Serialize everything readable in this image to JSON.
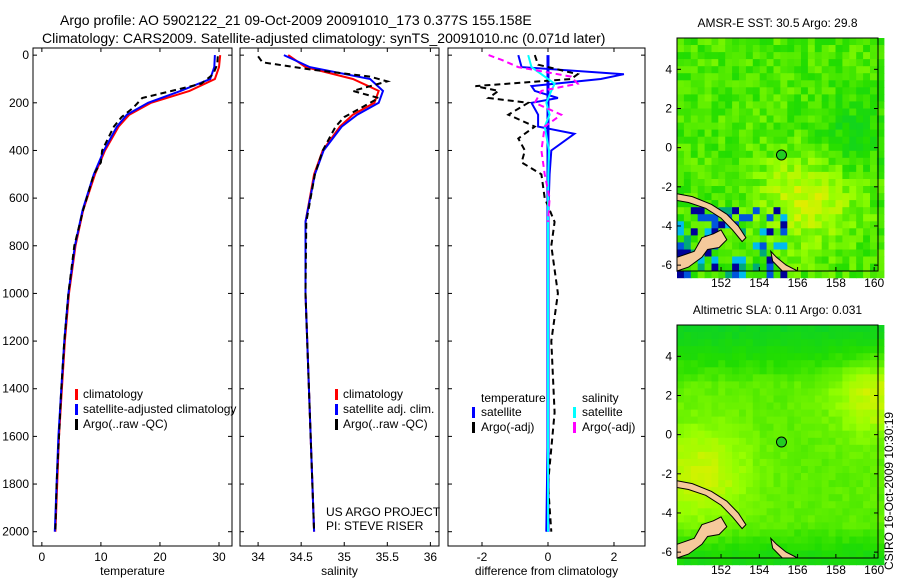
{
  "title_line1": "Argo profile: AO 5902122_21 09-Oct-2009 20091010_173 0.377S 155.158E",
  "title_line2": "Climatology: CARS2009. Satellite-adjusted climatology: synTS_20091010.nc (0.071d later)",
  "side_label": "CSIRO 16-Oct-2009 10:30:19",
  "colors": {
    "climatology": "#ff0000",
    "satellite": "#0000ff",
    "argo": "#000000",
    "sal_satellite": "#00ffff",
    "sal_argo": "#ff00ff",
    "land": "#f5c99b"
  },
  "chart_data": [
    {
      "type": "line",
      "xlabel": "temperature",
      "ylabel": "",
      "xlim": [
        -1.5,
        32.2
      ],
      "ylim": [
        -30,
        2060
      ],
      "yreverse": true,
      "xticks": [
        0,
        10,
        20,
        30
      ],
      "yticks": [
        0,
        200,
        400,
        600,
        800,
        1000,
        1200,
        1400,
        1600,
        1800,
        2000
      ],
      "legend": [
        "climatology",
        "satellite-adjusted climatology",
        "Argo(..raw -QC)"
      ],
      "series": [
        {
          "name": "climatology",
          "color": "#ff0000",
          "dash": "",
          "depth": [
            0,
            50,
            100,
            150,
            200,
            250,
            300,
            400,
            500,
            650,
            800,
            1000,
            1200,
            1400,
            1600,
            1800,
            2000
          ],
          "values": [
            30.2,
            30,
            29.3,
            25,
            18.5,
            14.8,
            13,
            10.7,
            9,
            7,
            5.7,
            4.6,
            3.9,
            3.4,
            2.9,
            2.6,
            2.3
          ]
        },
        {
          "name": "satellite",
          "color": "#0000ff",
          "dash": "",
          "depth": [
            0,
            50,
            100,
            150,
            200,
            250,
            300,
            400,
            500,
            650,
            800,
            1000,
            1200,
            1400,
            1600,
            1800,
            2000
          ],
          "values": [
            29.3,
            29.2,
            28.5,
            23.5,
            18,
            14.4,
            12.7,
            10.5,
            8.8,
            6.9,
            5.6,
            4.5,
            3.8,
            3.3,
            2.8,
            2.5,
            2.2
          ]
        },
        {
          "name": "argo",
          "color": "#000000",
          "dash": "6,4",
          "depth": [
            5,
            40,
            80,
            120,
            150,
            180,
            220,
            260,
            300,
            400,
            450,
            500,
            650,
            800,
            1000,
            1200,
            1400,
            1600,
            1800,
            2000
          ],
          "values": [
            29.8,
            29.7,
            29,
            27,
            22,
            17,
            15.5,
            13.5,
            12.2,
            10.2,
            10,
            8.8,
            7,
            5.5,
            4.5,
            3.8,
            3.3,
            2.9,
            2.5,
            2.3
          ]
        }
      ]
    },
    {
      "type": "line",
      "xlabel": "salinity",
      "xlim": [
        33.79,
        36.1
      ],
      "ylim": [
        -30,
        2060
      ],
      "yreverse": true,
      "xticks": [
        34,
        34.5,
        35,
        35.5,
        36
      ],
      "xticklabels": [
        "34",
        "34.5",
        "35",
        "35.5",
        "36"
      ],
      "legend": [
        "climatology",
        "satellite adj. clim.",
        "Argo(..raw -QC)"
      ],
      "annotation": [
        "US ARGO PROJECT",
        "PI: STEVE RISER"
      ],
      "series": [
        {
          "name": "climatology",
          "color": "#ff0000",
          "dash": "",
          "depth": [
            0,
            50,
            100,
            150,
            200,
            250,
            300,
            400,
            500,
            700,
            1000,
            1500,
            2000
          ],
          "values": [
            34.35,
            34.55,
            35.1,
            35.4,
            35.35,
            35.1,
            34.95,
            34.75,
            34.65,
            34.55,
            34.55,
            34.6,
            34.65
          ]
        },
        {
          "name": "satellite",
          "color": "#0000ff",
          "dash": "",
          "depth": [
            0,
            50,
            100,
            150,
            200,
            250,
            300,
            400,
            500,
            700,
            1000,
            1500,
            2000
          ],
          "values": [
            34.3,
            34.6,
            35.3,
            35.45,
            35.4,
            35.15,
            34.97,
            34.76,
            34.66,
            34.55,
            34.55,
            34.6,
            34.65
          ]
        },
        {
          "name": "argo",
          "color": "#000000",
          "dash": "6,4",
          "depth": [
            5,
            30,
            60,
            90,
            110,
            150,
            180,
            220,
            260,
            300,
            400,
            500,
            700,
            1000,
            1500,
            2000
          ],
          "values": [
            34.0,
            34.05,
            34.6,
            35.3,
            35.5,
            35.1,
            35.4,
            35.2,
            35.0,
            34.9,
            34.75,
            34.66,
            34.56,
            34.55,
            34.6,
            34.65
          ]
        }
      ]
    },
    {
      "type": "line",
      "xlabel": "difference from climatology",
      "xlim": [
        -3.03,
        2.94
      ],
      "ylim": [
        -30,
        2060
      ],
      "yreverse": true,
      "xticks": [
        -2,
        0,
        2
      ],
      "legend_temperature_title": "temperature",
      "legend_salinity_title": "salinity",
      "legend": [
        "satellite",
        "Argo(-adj)",
        "satellite",
        "Argo(-adj)"
      ],
      "series": [
        {
          "name": "temperature satellite",
          "color": "#0000ff",
          "dash": "",
          "depth": [
            0,
            50,
            80,
            100,
            130,
            150,
            180,
            200,
            250,
            300,
            330,
            400,
            500,
            700,
            1000,
            1500,
            2000
          ],
          "values": [
            -0.9,
            -0.8,
            2.3,
            1.6,
            -0.5,
            -0.4,
            0.3,
            -0.5,
            -0.3,
            -0.3,
            0.8,
            0.1,
            0.05,
            0,
            0,
            0,
            -0.05
          ]
        },
        {
          "name": "temperature Argo(-adj)",
          "color": "#000000",
          "dash": "6,4",
          "depth": [
            0,
            40,
            80,
            100,
            130,
            150,
            180,
            200,
            250,
            300,
            350,
            400,
            450,
            500,
            600,
            700,
            800,
            1000,
            1200,
            1500,
            1800,
            2000
          ],
          "values": [
            -0.4,
            -0.3,
            0.9,
            0.7,
            -2.2,
            -1.5,
            -1.8,
            -0.6,
            -1.2,
            -0.4,
            -0.9,
            -0.7,
            -0.8,
            -0.2,
            -0.1,
            0.2,
            0.1,
            0.3,
            0.1,
            0.2,
            0,
            0.1
          ]
        },
        {
          "name": "salinity satellite",
          "color": "#00ffff",
          "dash": "",
          "depth": [
            0,
            50,
            90,
            120,
            150,
            200,
            250,
            300,
            400,
            500,
            700,
            1000,
            1500,
            2000
          ],
          "values": [
            -0.6,
            -0.5,
            -0.1,
            0.2,
            0.1,
            -0.05,
            0.05,
            -0.1,
            0.03,
            0.01,
            0,
            0,
            0,
            0
          ]
        },
        {
          "name": "salinity Argo(-adj)",
          "color": "#ff00ff",
          "dash": "6,4",
          "depth": [
            0,
            20,
            50,
            90,
            120,
            150,
            200,
            250,
            300,
            400,
            500,
            600,
            700
          ],
          "values": [
            -1.8,
            -1.4,
            -0.9,
            0.7,
            0.9,
            -0.2,
            -0.4,
            0.4,
            -0.1,
            -0.2,
            -0.1,
            0.05,
            0
          ]
        }
      ]
    },
    {
      "type": "heatmap",
      "title": "AMSR-E SST: 30.5 Argo: 29.8",
      "xlim": [
        149.7,
        160.2
      ],
      "ylim": [
        -6.3,
        5.6
      ],
      "xticks": [
        152,
        154,
        156,
        158,
        160
      ],
      "yticks": [
        4,
        2,
        0,
        -2,
        -4,
        -6
      ],
      "argo_position": {
        "lon": 155.158,
        "lat": -0.377
      }
    },
    {
      "type": "heatmap",
      "title": "Altimetric SLA: 0.11 Argo: 0.031",
      "xlim": [
        149.7,
        160.2
      ],
      "ylim": [
        -6.3,
        5.6
      ],
      "xticks": [
        152,
        154,
        156,
        158,
        160
      ],
      "yticks": [
        4,
        2,
        0,
        -2,
        -4,
        -6
      ],
      "argo_position": {
        "lon": 155.158,
        "lat": -0.377
      }
    }
  ]
}
